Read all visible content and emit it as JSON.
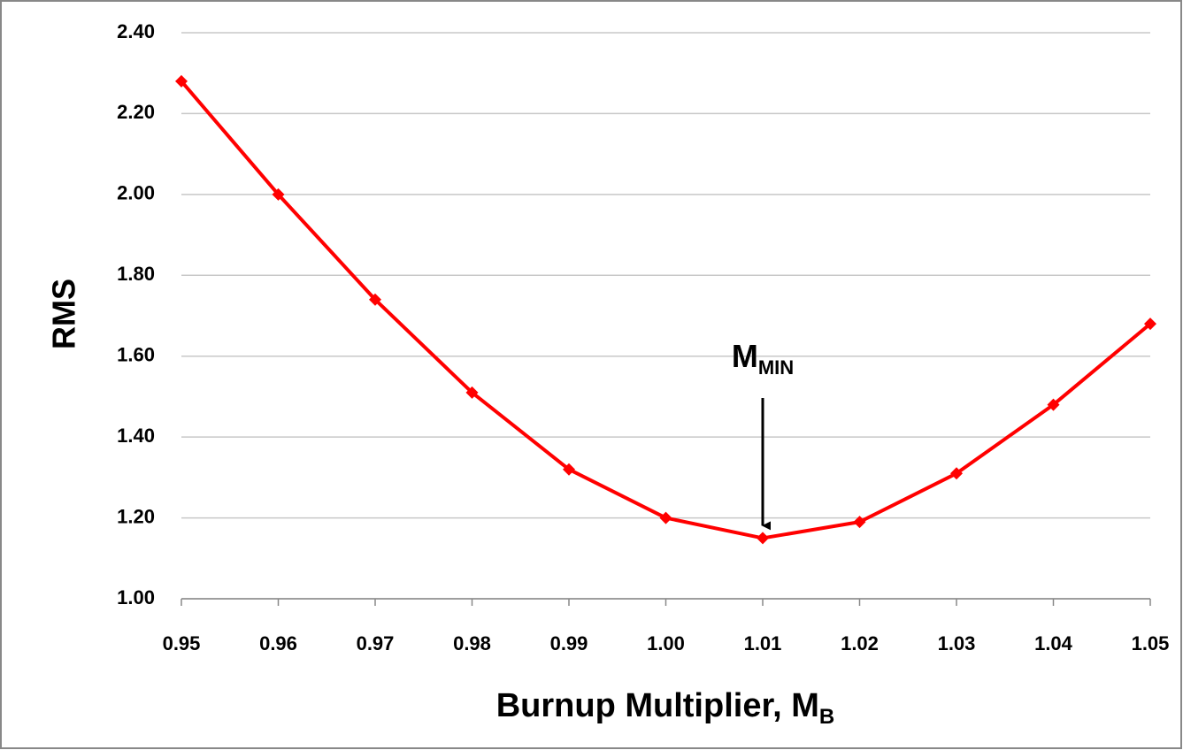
{
  "chart_data": {
    "type": "line",
    "x_label": {
      "text": "Burnup Multiplier, M",
      "subscript": "B"
    },
    "y_label": "RMS",
    "x": [
      0.95,
      0.96,
      0.97,
      0.98,
      0.99,
      1.0,
      1.01,
      1.02,
      1.03,
      1.04,
      1.05
    ],
    "series": [
      {
        "color": "#ff0000",
        "values": [
          2.28,
          2.0,
          1.74,
          1.51,
          1.32,
          1.2,
          1.15,
          1.19,
          1.31,
          1.48,
          1.68
        ]
      }
    ],
    "xlim": [
      0.95,
      1.05
    ],
    "xticks": [
      0.95,
      0.96,
      0.97,
      0.98,
      0.99,
      {
        "value": 1.0,
        "label": "1.00"
      },
      1.01,
      1.02,
      1.03,
      1.04,
      1.05
    ],
    "ylim": [
      1.0,
      2.4
    ],
    "yticks": [
      {
        "value": 1.0,
        "label": "1.00"
      },
      {
        "value": 1.2,
        "label": "1.20"
      },
      {
        "value": 1.4,
        "label": "1.40"
      },
      {
        "value": 1.6,
        "label": "1.60"
      },
      {
        "value": 1.8,
        "label": "1.80"
      },
      {
        "value": 2.0,
        "label": "2.00"
      },
      {
        "value": 2.2,
        "label": "2.20"
      },
      {
        "value": 2.4,
        "label": "2.40"
      }
    ],
    "grid": true,
    "annotation": {
      "text": "M",
      "subscript": "MIN",
      "x": 1.01
    }
  }
}
